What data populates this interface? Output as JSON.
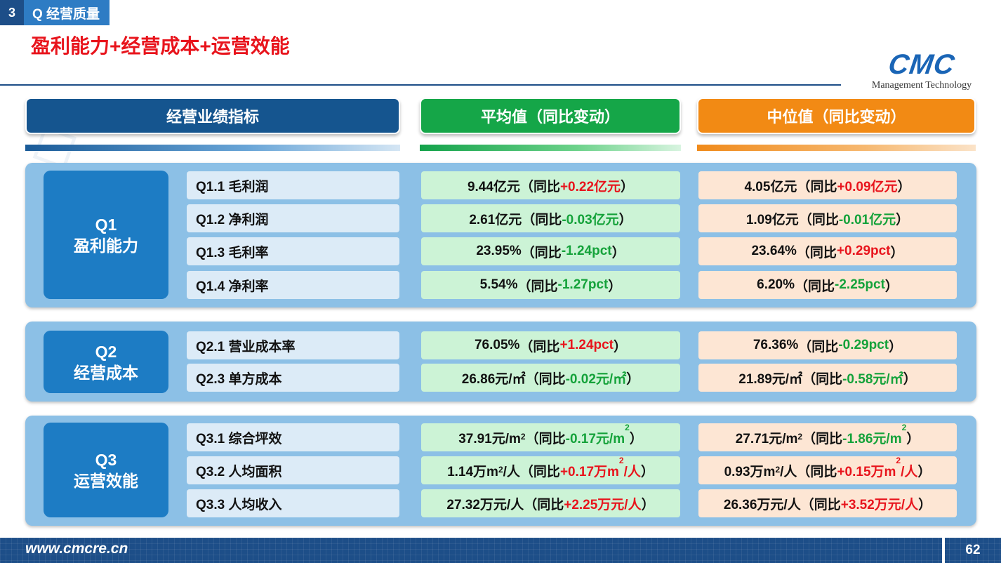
{
  "section": {
    "number": "3",
    "label": "Q 经营质量"
  },
  "title": "盈利能力+经营成本+运营效能",
  "logo": {
    "mark": "CMC",
    "subtitle": "Management Technology"
  },
  "headers": {
    "metric": "经营业绩指标",
    "average": "平均值（同比变动）",
    "median": "中位值（同比变动）"
  },
  "colors": {
    "dark_blue": "#1d4e88",
    "green": "#15a648",
    "orange": "#f28a14",
    "increase": "#e8141c",
    "decrease": "#14a23a"
  },
  "groups": [
    {
      "id": "Q1",
      "name": "盈利能力",
      "rows": [
        {
          "metric": "Q1.1 毛利润",
          "avg": {
            "value": "9.44亿元",
            "prefix": "（同比",
            "change": "+0.22亿元",
            "unit_sup": "",
            "change_tail": "",
            "suffix": "）",
            "dir": "pos"
          },
          "med": {
            "value": "4.05亿元",
            "prefix": "（同比",
            "change": "+0.09亿元",
            "unit_sup": "",
            "change_tail": "",
            "suffix": "）",
            "dir": "pos"
          }
        },
        {
          "metric": "Q1.2 净利润",
          "avg": {
            "value": "2.61亿元",
            "prefix": "（同比",
            "change": "-0.03亿元",
            "unit_sup": "",
            "change_tail": "",
            "suffix": "）",
            "dir": "neg"
          },
          "med": {
            "value": "1.09亿元",
            "prefix": "（同比",
            "change": "-0.01亿元",
            "unit_sup": "",
            "change_tail": "",
            "suffix": "）",
            "dir": "neg"
          }
        },
        {
          "metric": "Q1.3 毛利率",
          "avg": {
            "value": "23.95%",
            "prefix": "（同比",
            "change": "-1.24pct",
            "unit_sup": "",
            "change_tail": "",
            "suffix": "）",
            "dir": "neg"
          },
          "med": {
            "value": "23.64%",
            "prefix": "（同比",
            "change": "+0.29pct",
            "unit_sup": "",
            "change_tail": "",
            "suffix": "）",
            "dir": "pos"
          }
        },
        {
          "metric": "Q1.4 净利率",
          "avg": {
            "value": "5.54%",
            "prefix": "（同比",
            "change": "-1.27pct",
            "unit_sup": "",
            "change_tail": "",
            "suffix": "）",
            "dir": "neg"
          },
          "med": {
            "value": "6.20%",
            "prefix": "（同比",
            "change": "-2.25pct",
            "unit_sup": "",
            "change_tail": "",
            "suffix": "）",
            "dir": "neg"
          }
        }
      ]
    },
    {
      "id": "Q2",
      "name": "经营成本",
      "rows": [
        {
          "metric": "Q2.1 营业成本率",
          "avg": {
            "value": "76.05%",
            "prefix": "（同比",
            "change": "+1.24pct",
            "unit_sup": "",
            "change_tail": "",
            "suffix": "）",
            "dir": "pos"
          },
          "med": {
            "value": "76.36%",
            "prefix": "（同比",
            "change": "-0.29pct",
            "unit_sup": "",
            "change_tail": "",
            "suffix": "）",
            "dir": "neg"
          }
        },
        {
          "metric": "Q2.3 单方成本",
          "avg": {
            "value": "26.86元/㎡",
            "prefix": "（同比",
            "change": "-0.02元/㎡",
            "unit_sup": "",
            "change_tail": "",
            "suffix": "）",
            "dir": "neg"
          },
          "med": {
            "value": "21.89元/㎡",
            "prefix": "（同比",
            "change": "-0.58元/㎡",
            "unit_sup": "",
            "change_tail": "",
            "suffix": "）",
            "dir": "neg"
          }
        }
      ]
    },
    {
      "id": "Q3",
      "name": "运营效能",
      "rows": [
        {
          "metric": "Q3.1 综合坪效",
          "avg": {
            "value": "37.91元/m",
            "value_sup": "2",
            "value_tail": "",
            "prefix": "（同比",
            "change": "-0.17元/m",
            "unit_sup": "2",
            "change_tail": " ",
            "suffix": "）",
            "dir": "neg"
          },
          "med": {
            "value": "27.71元/m",
            "value_sup": "2",
            "value_tail": "",
            "prefix": "（同比",
            "change": "-1.86元/m",
            "unit_sup": "2",
            "change_tail": "",
            "suffix": "）",
            "dir": "neg"
          }
        },
        {
          "metric": "Q3.2 人均面积",
          "avg": {
            "value": "1.14万m",
            "value_sup": "2",
            "value_tail": "/人",
            "prefix": "（同比",
            "change": "+0.17万m",
            "unit_sup": "2",
            "change_tail": "/人",
            "suffix": "）",
            "dir": "pos"
          },
          "med": {
            "value": "0.93万m",
            "value_sup": "2",
            "value_tail": "/人",
            "prefix": "（同比",
            "change": "+0.15万m",
            "unit_sup": "2",
            "change_tail": "/人",
            "suffix": "）",
            "dir": "pos"
          }
        },
        {
          "metric": "Q3.3 人均收入",
          "avg": {
            "value": "27.32万元/人",
            "prefix": "（同比",
            "change": "+2.25万元/人",
            "unit_sup": "",
            "change_tail": "",
            "suffix": "）",
            "dir": "pos"
          },
          "med": {
            "value": "26.36万元/人",
            "prefix": "（同比",
            "change": "+3.52万元/人",
            "unit_sup": "",
            "change_tail": "",
            "suffix": "）",
            "dir": "pos"
          }
        }
      ]
    }
  ],
  "footer": {
    "url": "www.cmcre.cn",
    "page": "62"
  }
}
